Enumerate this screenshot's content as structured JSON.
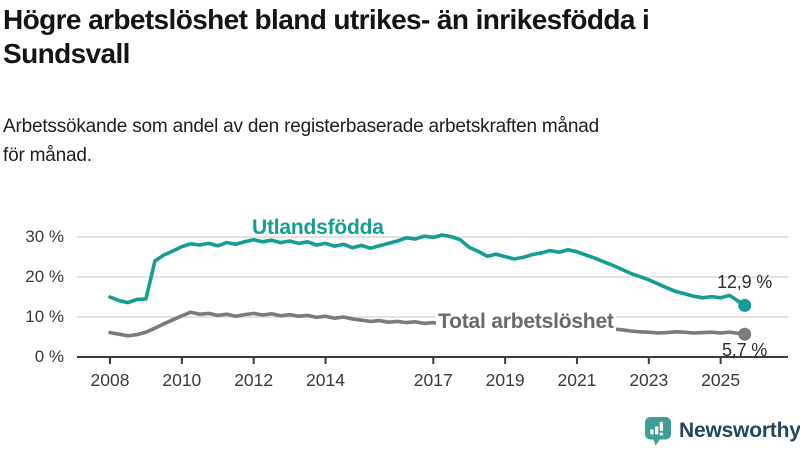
{
  "title": {
    "line1": "Högre arbetslöshet bland utrikes- än inrikesfödda i",
    "line2": "Sundsvall"
  },
  "subtitle": {
    "line1": "Arbetssökande som andel av den registerbaserade arbetskraften månad",
    "line2": "för månad."
  },
  "colors": {
    "series_utlandsfodda": "#149e93",
    "series_total": "#7b7b7b",
    "series_total_label": "#6a6a6e",
    "axis": "#3c3c3c",
    "gridline": "#dadada",
    "tick_text": "#3a3a3a",
    "title_text": "#141414",
    "logo_teal": "#3f9e95",
    "logo_text": "#24465f"
  },
  "chart_data": {
    "type": "line",
    "title": "Högre arbetslöshet bland utrikes- än inrikesfödda i Sundsvall",
    "subtitle": "Arbetssökande som andel av den registerbaserade arbetskraften månad för månad.",
    "xlabel": "",
    "ylabel": "",
    "ylim": [
      0,
      33
    ],
    "xlim": [
      2007.6,
      2026.2
    ],
    "grid": "horizontal",
    "legend_position": "inline-labels",
    "x_unit": "decimal year (monthly data)",
    "x": [
      2008.0,
      2008.25,
      2008.5,
      2008.75,
      2009.0,
      2009.25,
      2009.5,
      2009.75,
      2010.0,
      2010.25,
      2010.5,
      2010.75,
      2011.0,
      2011.25,
      2011.5,
      2011.75,
      2012.0,
      2012.25,
      2012.5,
      2012.75,
      2013.0,
      2013.25,
      2013.5,
      2013.75,
      2014.0,
      2014.25,
      2014.5,
      2014.75,
      2015.0,
      2015.25,
      2015.5,
      2015.75,
      2016.0,
      2016.25,
      2016.5,
      2016.75,
      2017.0,
      2017.25,
      2017.5,
      2017.75,
      2018.0,
      2018.25,
      2018.5,
      2018.75,
      2019.0,
      2019.25,
      2019.5,
      2019.75,
      2020.0,
      2020.25,
      2020.5,
      2020.75,
      2021.0,
      2021.25,
      2021.5,
      2021.75,
      2022.0,
      2022.25,
      2022.5,
      2022.75,
      2023.0,
      2023.25,
      2023.5,
      2023.75,
      2024.0,
      2024.25,
      2024.5,
      2024.75,
      2025.0,
      2025.25,
      2025.5,
      2025.67
    ],
    "series": [
      {
        "name": "Utlandsfödda",
        "color": "#149e93",
        "end_label": "12,9 %",
        "end_value": 12.9,
        "values": [
          15.0,
          14.1,
          13.6,
          14.4,
          14.5,
          24.0,
          25.5,
          26.5,
          27.6,
          28.3,
          28.0,
          28.4,
          27.8,
          28.6,
          28.2,
          28.8,
          29.3,
          28.8,
          29.2,
          28.6,
          29.0,
          28.4,
          28.8,
          28.0,
          28.4,
          27.7,
          28.2,
          27.3,
          27.9,
          27.2,
          27.8,
          28.4,
          29.0,
          29.8,
          29.5,
          30.2,
          29.9,
          30.5,
          30.1,
          29.3,
          27.4,
          26.4,
          25.2,
          25.7,
          25.1,
          24.5,
          24.9,
          25.6,
          26.0,
          26.6,
          26.2,
          26.8,
          26.3,
          25.5,
          24.7,
          23.8,
          22.9,
          21.9,
          20.9,
          20.1,
          19.3,
          18.3,
          17.3,
          16.4,
          15.8,
          15.2,
          14.8,
          15.1,
          14.8,
          15.4,
          13.9,
          12.9
        ]
      },
      {
        "name": "Total arbetslöshet",
        "color": "#7b7b7b",
        "end_label": "5,7 %",
        "end_value": 5.7,
        "values": [
          6.1,
          5.7,
          5.3,
          5.6,
          6.2,
          7.2,
          8.3,
          9.3,
          10.3,
          11.2,
          10.7,
          10.9,
          10.4,
          10.7,
          10.2,
          10.6,
          10.9,
          10.5,
          10.8,
          10.3,
          10.6,
          10.2,
          10.4,
          9.9,
          10.2,
          9.7,
          10.0,
          9.5,
          9.2,
          8.9,
          9.1,
          8.7,
          8.9,
          8.6,
          8.8,
          8.4,
          8.6,
          8.3,
          8.5,
          8.1,
          8.2,
          7.9,
          7.7,
          7.5,
          7.8,
          7.5,
          7.3,
          7.2,
          7.4,
          8.6,
          9.0,
          8.7,
          8.4,
          8.1,
          7.7,
          7.3,
          7.0,
          6.8,
          6.5,
          6.3,
          6.2,
          6.0,
          6.1,
          6.3,
          6.2,
          6.0,
          6.1,
          6.2,
          6.0,
          6.2,
          5.9,
          5.7
        ]
      }
    ],
    "yticks": [
      {
        "value": 0,
        "label": "0 %"
      },
      {
        "value": 10,
        "label": "10 %"
      },
      {
        "value": 20,
        "label": "20 %"
      },
      {
        "value": 30,
        "label": "30 %"
      }
    ],
    "xticks": [
      {
        "value": 2008,
        "label": "2008"
      },
      {
        "value": 2010,
        "label": "2010"
      },
      {
        "value": 2012,
        "label": "2012"
      },
      {
        "value": 2014,
        "label": "2014"
      },
      {
        "value": 2017,
        "label": "2017"
      },
      {
        "value": 2019,
        "label": "2019"
      },
      {
        "value": 2021,
        "label": "2021"
      },
      {
        "value": 2023,
        "label": "2023"
      },
      {
        "value": 2025,
        "label": "2025"
      }
    ]
  },
  "logo": {
    "brand": "Newsworthy"
  }
}
